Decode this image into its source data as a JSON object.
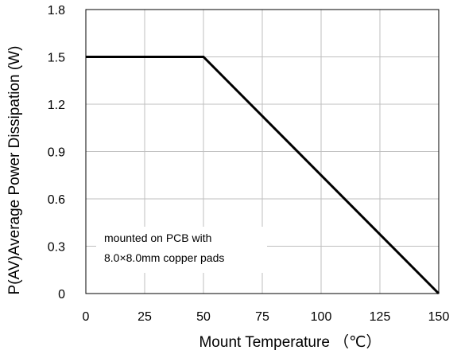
{
  "chart_data": {
    "type": "line",
    "xlabel": "Mount Temperature （℃）",
    "ylabel": "P(AV)Average Power Dissipation (W)",
    "xlim": [
      0,
      150
    ],
    "ylim": [
      0,
      1.8
    ],
    "x_ticks": [
      "0",
      "25",
      "50",
      "75",
      "100",
      "125",
      "150"
    ],
    "y_ticks": [
      "0",
      "0.3",
      "0.6",
      "0.9",
      "1.2",
      "1.5",
      "1.8"
    ],
    "grid": true,
    "series": [
      {
        "x": [
          0,
          50,
          150
        ],
        "y": [
          1.5,
          1.5,
          0
        ]
      }
    ],
    "annotation": [
      "mounted on PCB with",
      "8.0×8.0mm copper pads"
    ],
    "line_color": "#000000",
    "grid_color": "#bfbfbf"
  }
}
